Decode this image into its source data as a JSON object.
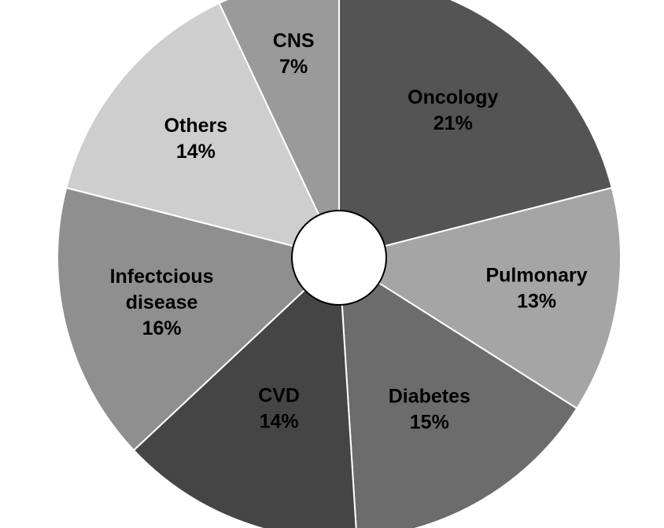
{
  "chart_data": {
    "type": "pie",
    "title": "",
    "donut": true,
    "start_angle_deg": 0,
    "direction": "clockwise",
    "legend": "none",
    "slices": [
      {
        "name_lines": [
          "Oncology"
        ],
        "value": 21,
        "label": "21%",
        "color": "#545454"
      },
      {
        "name_lines": [
          "Pulmonary"
        ],
        "value": 13,
        "label": "13%",
        "color": "#a5a5a5"
      },
      {
        "name_lines": [
          "Diabetes"
        ],
        "value": 15,
        "label": "15%",
        "color": "#6c6c6c"
      },
      {
        "name_lines": [
          "CVD"
        ],
        "value": 14,
        "label": "14%",
        "color": "#454545"
      },
      {
        "name_lines": [
          "Infectcious",
          "disease"
        ],
        "value": 16,
        "label": "16%",
        "color": "#8f8f8f"
      },
      {
        "name_lines": [
          "Others"
        ],
        "value": 14,
        "label": "14%",
        "color": "#cecece"
      },
      {
        "name_lines": [
          "CNS"
        ],
        "value": 7,
        "label": "7%",
        "color": "#9a9a9a"
      }
    ]
  }
}
